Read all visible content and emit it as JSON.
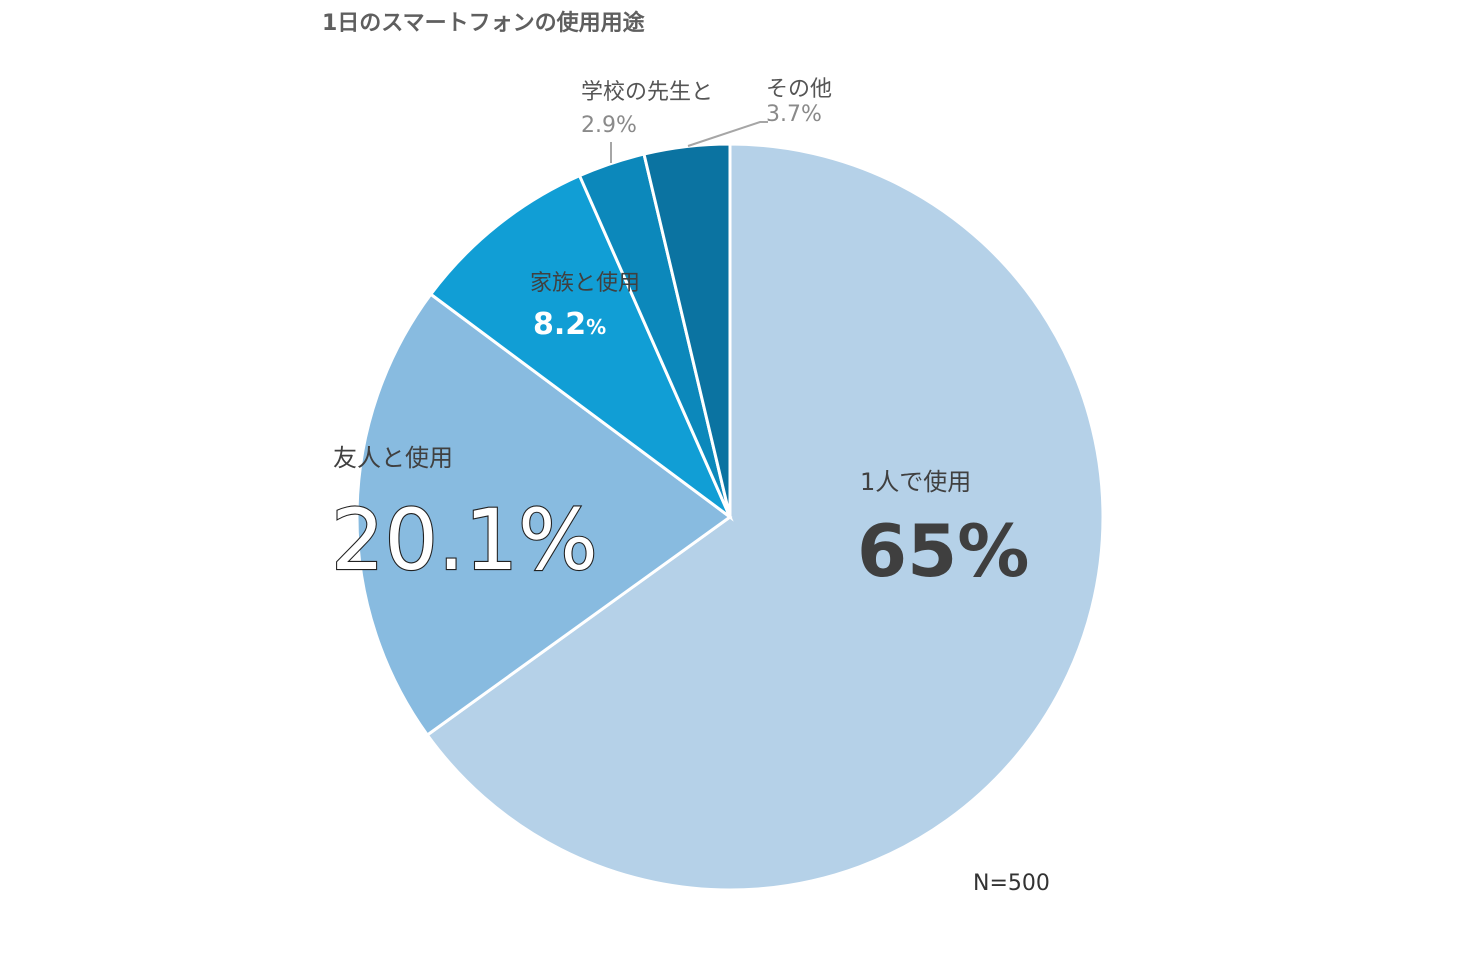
{
  "chart_data": {
    "type": "pie",
    "title": "1日のスマートフォンの使用用途",
    "note": "N=500",
    "slices": [
      {
        "label": "1人で使用",
        "value": 65,
        "value_text": "65",
        "unit": "%",
        "color": "#b5d1e8"
      },
      {
        "label": "友人と使用",
        "value": 20.1,
        "value_text": "20.1",
        "unit": "%",
        "color": "#88bbe0"
      },
      {
        "label": "家族と使用",
        "value": 8.2,
        "value_text": "8.2",
        "unit": "%",
        "color": "#119ed5"
      },
      {
        "label": "学校の先生と",
        "value": 2.9,
        "value_text": "2.9",
        "unit": "%",
        "color": "#0c88bb"
      },
      {
        "label": "その他",
        "value": 3.7,
        "value_text": "3.7",
        "unit": "%",
        "color": "#0b73a1"
      }
    ]
  }
}
